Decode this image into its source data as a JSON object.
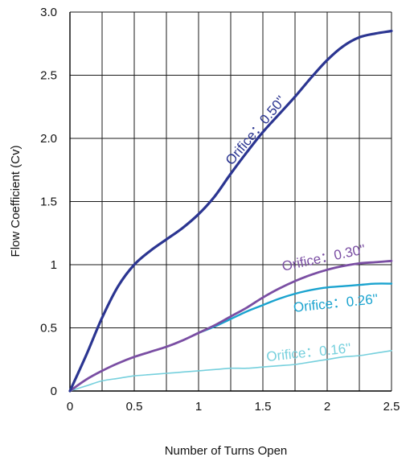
{
  "chart_data": {
    "type": "line",
    "xlabel": "Number of Turns Open",
    "ylabel": "Flow Coefficient (Cv)",
    "xlim": [
      0,
      2.5
    ],
    "ylim": [
      0,
      3.0
    ],
    "x_ticks": [
      0,
      0.5,
      1,
      1.5,
      2,
      2.5
    ],
    "x_tick_labels": [
      "0",
      "0.5",
      "1",
      "1.5",
      "2",
      "2.5"
    ],
    "y_ticks": [
      0,
      0.5,
      1,
      1.5,
      2,
      2.5,
      3
    ],
    "y_tick_labels": [
      "0",
      "0.5",
      "1",
      "1.5",
      "2.0",
      "2.5",
      "3.0"
    ],
    "grid": true,
    "series": [
      {
        "name": "Orifice：0.50''",
        "color": "#2b3591",
        "x": [
          0,
          0.125,
          0.25,
          0.375,
          0.5,
          0.625,
          0.75,
          0.875,
          1,
          1.125,
          1.25,
          1.375,
          1.5,
          1.625,
          1.75,
          1.875,
          2,
          2.125,
          2.25,
          2.375,
          2.5
        ],
        "values": [
          0,
          0.28,
          0.58,
          0.83,
          1.0,
          1.11,
          1.2,
          1.29,
          1.4,
          1.54,
          1.72,
          1.89,
          2.05,
          2.19,
          2.33,
          2.48,
          2.62,
          2.73,
          2.8,
          2.83,
          2.85
        ]
      },
      {
        "name": "Orifice：0.30''",
        "color": "#7a4ea3",
        "x": [
          0,
          0.125,
          0.25,
          0.375,
          0.5,
          0.625,
          0.75,
          0.875,
          1,
          1.125,
          1.25,
          1.375,
          1.5,
          1.625,
          1.75,
          1.875,
          2,
          2.125,
          2.25,
          2.375,
          2.5
        ],
        "values": [
          0,
          0.09,
          0.16,
          0.22,
          0.27,
          0.31,
          0.35,
          0.4,
          0.46,
          0.52,
          0.59,
          0.66,
          0.74,
          0.81,
          0.87,
          0.92,
          0.96,
          0.99,
          1.01,
          1.02,
          1.03
        ]
      },
      {
        "name": "Orifice：0.26''",
        "color": "#1aa3cf",
        "x": [
          1,
          1.125,
          1.25,
          1.375,
          1.5,
          1.625,
          1.75,
          1.875,
          2,
          2.125,
          2.25,
          2.375,
          2.5
        ],
        "values": [
          0.46,
          0.51,
          0.57,
          0.63,
          0.68,
          0.73,
          0.77,
          0.8,
          0.82,
          0.83,
          0.84,
          0.85,
          0.85
        ]
      },
      {
        "name": "Orifice：0.16''",
        "color": "#76d0dd",
        "x": [
          0,
          0.125,
          0.25,
          0.375,
          0.5,
          0.625,
          0.75,
          0.875,
          1,
          1.125,
          1.25,
          1.375,
          1.5,
          1.625,
          1.75,
          1.875,
          2,
          2.125,
          2.25,
          2.375,
          2.5
        ],
        "values": [
          0,
          0.04,
          0.08,
          0.1,
          0.12,
          0.13,
          0.14,
          0.15,
          0.16,
          0.17,
          0.18,
          0.18,
          0.19,
          0.2,
          0.21,
          0.23,
          0.25,
          0.27,
          0.28,
          0.3,
          0.32
        ]
      }
    ]
  }
}
